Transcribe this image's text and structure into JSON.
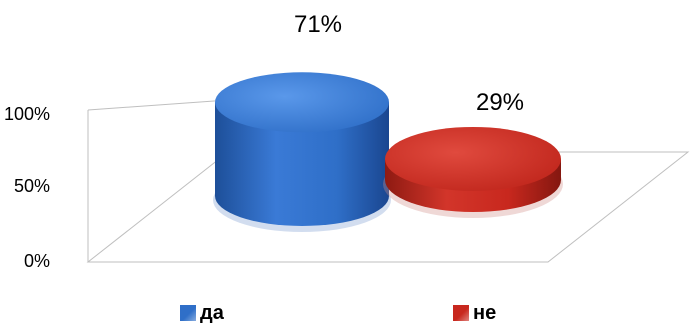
{
  "chart_data": {
    "type": "bar",
    "title": "",
    "xlabel": "",
    "ylabel": "",
    "ylim": [
      0,
      100
    ],
    "yticks": [
      "100%",
      "50%",
      "0%"
    ],
    "categories": [
      "да",
      "не"
    ],
    "values": [
      71,
      29
    ],
    "data_labels": [
      "71%",
      "29%"
    ],
    "colors": [
      "#2f6fc8",
      "#c8281e"
    ],
    "legend": {
      "position": "bottom",
      "items": [
        "да",
        "не"
      ]
    }
  }
}
